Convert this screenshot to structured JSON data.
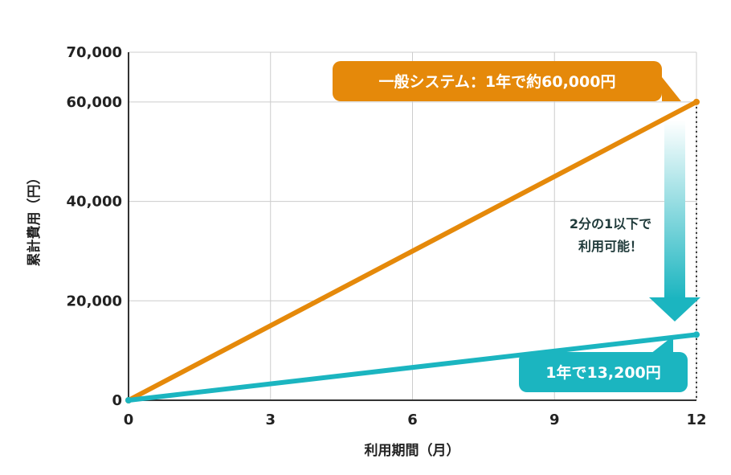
{
  "colors": {
    "general": "#E5890A",
    "ours": "#1BB5C0",
    "grid": "#cccccc",
    "axis": "#333333",
    "arrow_top": "#ffffff",
    "arrow_bottom": "#1BB5C0"
  },
  "chart_data": {
    "type": "line",
    "xlabel": "利用期間（月）",
    "ylabel": "累計費用（円）",
    "xlim": [
      0,
      12
    ],
    "ylim": [
      0,
      70000
    ],
    "x_ticks": [
      "0",
      "3",
      "6",
      "9",
      "12"
    ],
    "y_ticks": [
      "0",
      "20,000",
      "40,000",
      "60,000",
      "70,000"
    ],
    "grid": true,
    "series": [
      {
        "x": [
          0,
          12
        ],
        "y": [
          0,
          60000
        ],
        "color": "#E5890A"
      },
      {
        "x": [
          0,
          12
        ],
        "y": [
          0,
          13200
        ],
        "color": "#1BB5C0"
      }
    ],
    "annotations": {
      "general_callout": "一般システム：1年で約60,000円",
      "ours_callout": "1年で13,200円",
      "compare_note_line1": "2分の1以下で",
      "compare_note_line2": "利用可能！"
    }
  }
}
